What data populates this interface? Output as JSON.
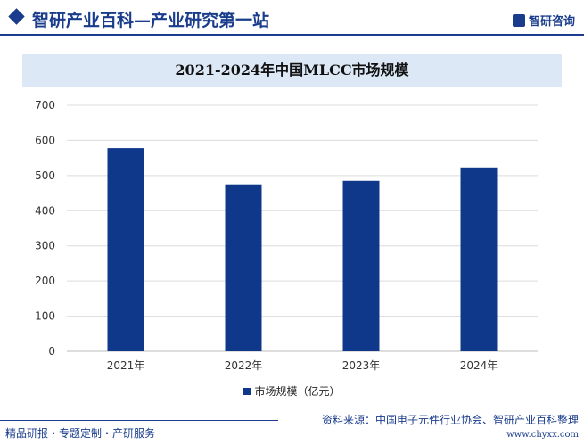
{
  "header": {
    "site_title": "智研产业百科—产业研究第一站",
    "logo_text": "智研咨询"
  },
  "footer": {
    "left": "精品研报・专题定制・产研服务",
    "source": "资料来源：中国电子元件行业协会、智研产业百科整理",
    "url": "www.chyxx.com"
  },
  "colors": {
    "bar": "#10388a",
    "brand": "#1a3c8c",
    "title_bg": "#dde8f7"
  },
  "chart_data": {
    "type": "bar",
    "title": "2021-2024年中国MLCC市场规模",
    "categories": [
      "2021年",
      "2022年",
      "2023年",
      "2024年"
    ],
    "series": [
      {
        "name": "市场规模（亿元）",
        "values": [
          578,
          475,
          485,
          523
        ]
      }
    ],
    "ylim": [
      0,
      700
    ],
    "yticks": [
      0,
      100,
      200,
      300,
      400,
      500,
      600,
      700
    ],
    "grid": true,
    "legend": "bottom"
  }
}
